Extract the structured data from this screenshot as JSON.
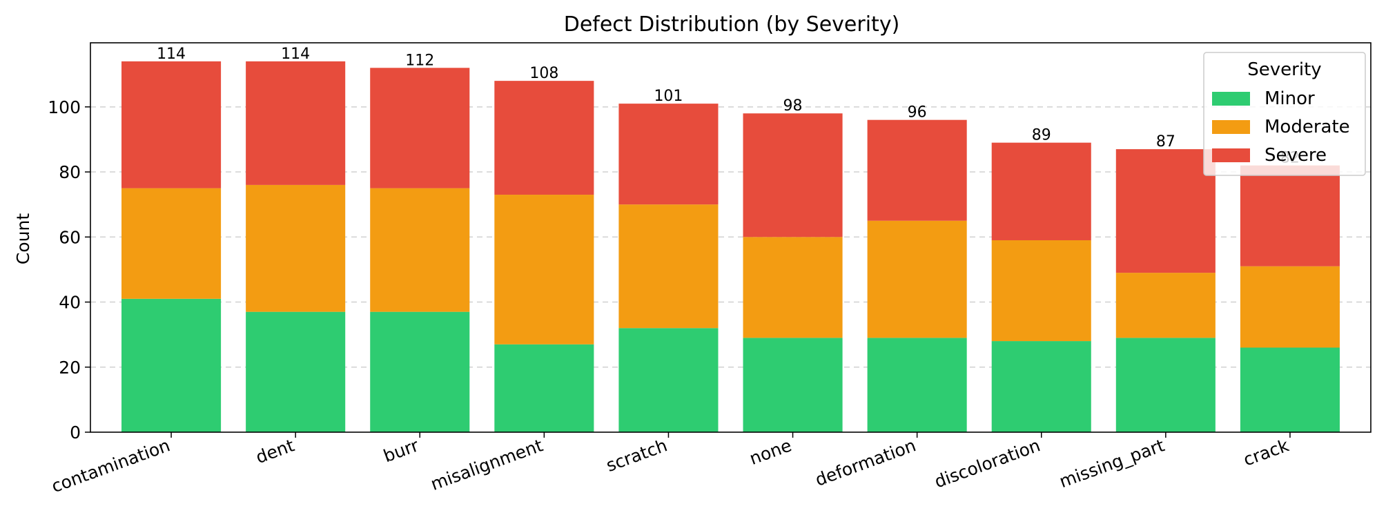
{
  "chart_data": {
    "type": "bar",
    "stacked": true,
    "title": "Defect Distribution (by Severity)",
    "xlabel": "",
    "ylabel": "Count",
    "ylim": [
      0,
      119.7
    ],
    "yticks": [
      0,
      20,
      40,
      60,
      80,
      100
    ],
    "grid": "y-dashed",
    "legend": {
      "title": "Severity",
      "placement": "top-right"
    },
    "categories": [
      "contamination",
      "dent",
      "burr",
      "misalignment",
      "scratch",
      "none",
      "deformation",
      "discoloration",
      "missing_part",
      "crack"
    ],
    "series": [
      {
        "name": "Minor",
        "color": "#2ecc71",
        "values": [
          41,
          37,
          37,
          27,
          32,
          29,
          29,
          28,
          29,
          26
        ]
      },
      {
        "name": "Moderate",
        "color": "#f39c12",
        "values": [
          34,
          39,
          38,
          46,
          38,
          31,
          36,
          31,
          20,
          25
        ]
      },
      {
        "name": "Severe",
        "color": "#e74c3c",
        "values": [
          39,
          38,
          37,
          35,
          31,
          38,
          31,
          30,
          38,
          31
        ]
      }
    ],
    "totals": [
      114,
      114,
      112,
      108,
      101,
      98,
      96,
      89,
      87,
      82
    ],
    "total_labels": [
      "114",
      "114",
      "112",
      "108",
      "101",
      "98",
      "96",
      "89",
      "87",
      "82"
    ]
  }
}
